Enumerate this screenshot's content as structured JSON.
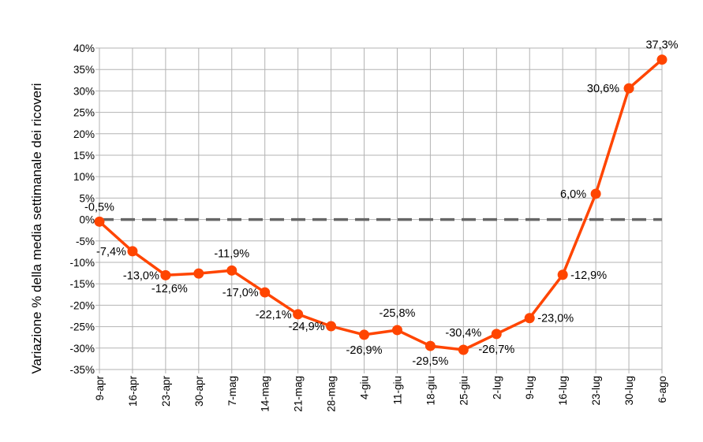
{
  "chart_data": {
    "type": "line",
    "title": "",
    "xlabel": "",
    "ylabel": "Variazione % della media settimanale dei ricoveri",
    "ylim": [
      -35,
      40
    ],
    "ytick_step": 5,
    "ytick_labels": [
      "-35%",
      "-30%",
      "-25%",
      "-20%",
      "-15%",
      "-10%",
      "-5%",
      "0%",
      "5%",
      "10%",
      "15%",
      "20%",
      "25%",
      "30%",
      "35%",
      "40%"
    ],
    "grid": true,
    "reference_line": {
      "y": 0,
      "style": "dashed"
    },
    "categories": [
      "9-apr",
      "16-apr",
      "23-apr",
      "30-apr",
      "7-mag",
      "14-mag",
      "21-mag",
      "28-mag",
      "4-giu",
      "11-giu",
      "18-giu",
      "25-giu",
      "2-lug",
      "9-lug",
      "16-lug",
      "23-lug",
      "30-lug",
      "6-ago"
    ],
    "series": [
      {
        "color": "#ff4500",
        "values": [
          -0.5,
          -7.4,
          -13.0,
          -12.6,
          -11.9,
          -17.0,
          -22.1,
          -24.9,
          -26.9,
          -25.8,
          -29.5,
          -30.4,
          -26.7,
          -23.0,
          -12.9,
          6.0,
          30.6,
          37.3
        ],
        "labels": [
          "-0,5%",
          "-7,4%",
          "-13,0%",
          "-12,6%",
          "-11,9%",
          "-17,0%",
          "-22,1%",
          "-24,9%",
          "-26,9%",
          "-25,8%",
          "-29,5%",
          "-30,4%",
          "-26,7%",
          "-23,0%",
          "-12,9%",
          "6,0%",
          "30,6%",
          "37,3%"
        ]
      }
    ]
  }
}
